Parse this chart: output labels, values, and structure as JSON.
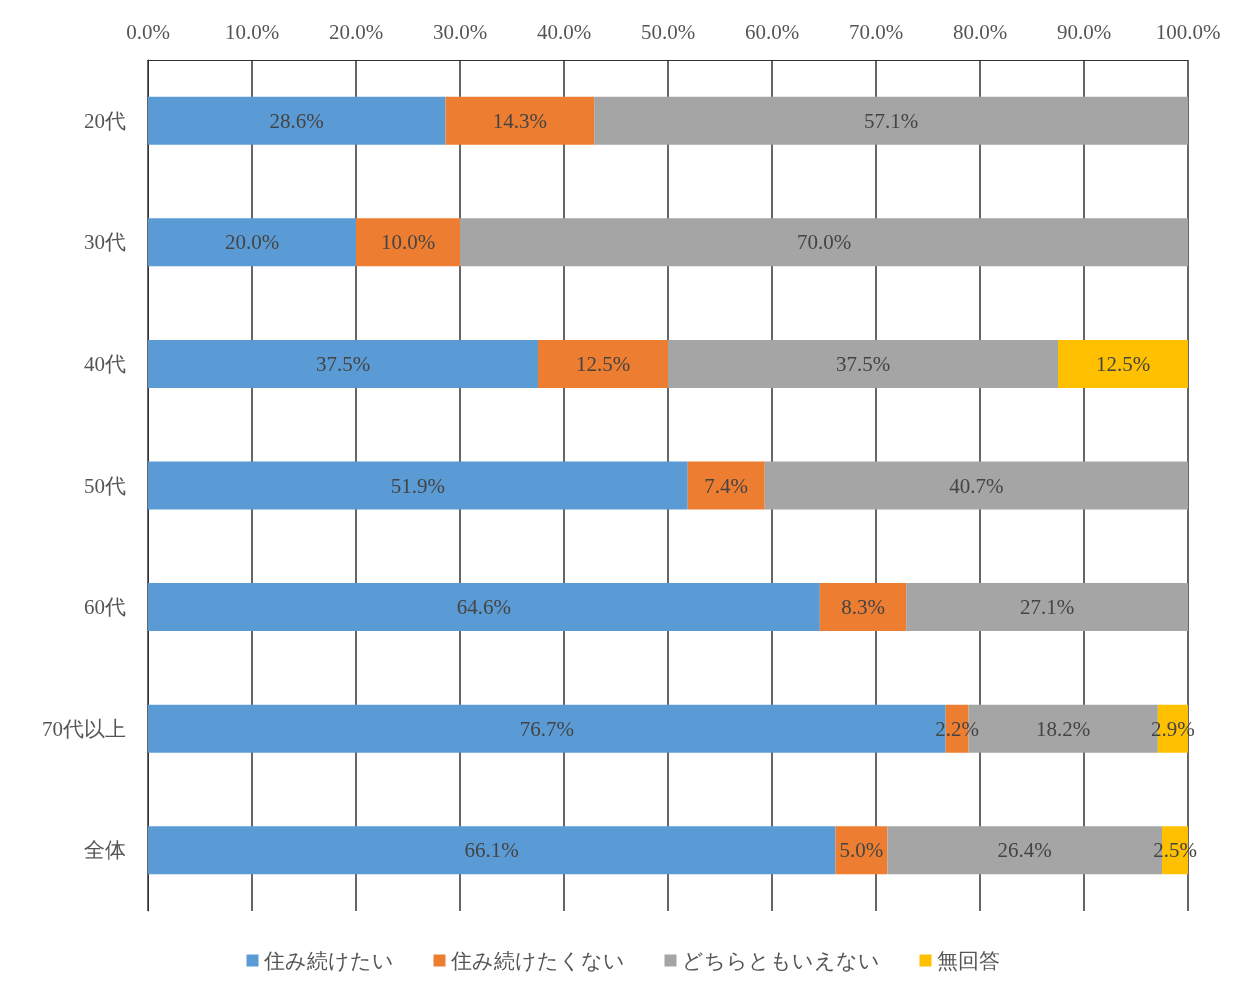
{
  "chart_data": {
    "type": "bar",
    "orientation": "horizontal",
    "stacked": true,
    "categories": [
      "20代",
      "30代",
      "40代",
      "50代",
      "60代",
      "70代以上",
      "全体"
    ],
    "series": [
      {
        "name": "住み続けたい",
        "color": "#5b9bd5",
        "values": [
          28.6,
          20.0,
          37.5,
          51.9,
          64.6,
          76.7,
          66.1
        ],
        "value_labels": [
          "28.6%",
          "20.0%",
          "37.5%",
          "51.9%",
          "64.6%",
          "76.7%",
          "66.1%"
        ]
      },
      {
        "name": "住み続けたくない",
        "color": "#ed7d31",
        "values": [
          14.3,
          10.0,
          12.5,
          7.4,
          8.3,
          2.2,
          5.0
        ],
        "value_labels": [
          "14.3%",
          "10.0%",
          "12.5%",
          "7.4%",
          "8.3%",
          "2.2%",
          "5.0%"
        ]
      },
      {
        "name": "どちらともいえない",
        "color": "#a5a5a5",
        "values": [
          57.1,
          70.0,
          37.5,
          40.7,
          27.1,
          18.2,
          26.4
        ],
        "value_labels": [
          "57.1%",
          "70.0%",
          "37.5%",
          "40.7%",
          "27.1%",
          "18.2%",
          "26.4%"
        ]
      },
      {
        "name": "無回答",
        "color": "#ffc000",
        "values": [
          null,
          null,
          12.5,
          null,
          null,
          2.9,
          2.5
        ],
        "value_labels": [
          null,
          null,
          "12.5%",
          null,
          null,
          "2.9%",
          "2.5%"
        ]
      }
    ],
    "xlim": [
      0,
      100
    ],
    "xticks": [
      {
        "value": 0,
        "label": "0.0%"
      },
      {
        "value": 10,
        "label": "10.0%"
      },
      {
        "value": 20,
        "label": "20.0%"
      },
      {
        "value": 30,
        "label": "30.0%"
      },
      {
        "value": 40,
        "label": "40.0%"
      },
      {
        "value": 50,
        "label": "50.0%"
      },
      {
        "value": 60,
        "label": "60.0%"
      },
      {
        "value": 70,
        "label": "70.0%"
      },
      {
        "value": 80,
        "label": "80.0%"
      },
      {
        "value": 90,
        "label": "90.0%"
      },
      {
        "value": 100,
        "label": "100.0%"
      }
    ],
    "grid": "x",
    "legend": "bottom"
  }
}
